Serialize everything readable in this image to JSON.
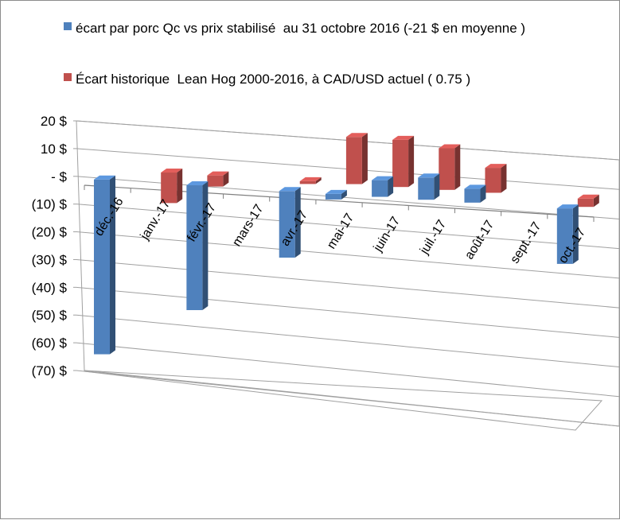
{
  "chart_data": {
    "type": "bar",
    "three_d": true,
    "categories": [
      "déc.-16",
      "janv.-17",
      "févr.-17",
      "mars-17",
      "avr.-17",
      "mai-17",
      "juin-17",
      "juil.-17",
      "août-17",
      "sept.-17",
      "oct.-17"
    ],
    "series": [
      {
        "name": "écart par porc Qc vs prix stabilisé  au 31 octobre 2016 (-21 $ en moyenne )",
        "color": "#4f81bd",
        "values": [
          -63,
          null,
          -45,
          null,
          -24,
          -2,
          6,
          8,
          5,
          null,
          -20
        ]
      },
      {
        "name": "Écart historique  Lean Hog 2000-2016, à CAD/USD actuel ( 0.75 )",
        "color": "#c0504d",
        "values": [
          null,
          -11,
          -4,
          null,
          -1,
          17,
          17,
          15,
          9,
          null,
          -3
        ]
      }
    ],
    "yticks": [
      "20  $",
      "10  $",
      "-   $",
      "(10) $",
      "(20) $",
      "(30) $",
      "(40) $",
      "(50) $",
      "(60) $",
      "(70) $"
    ],
    "ylim": [
      -70,
      20
    ],
    "grid": true,
    "legend_position": "top"
  }
}
